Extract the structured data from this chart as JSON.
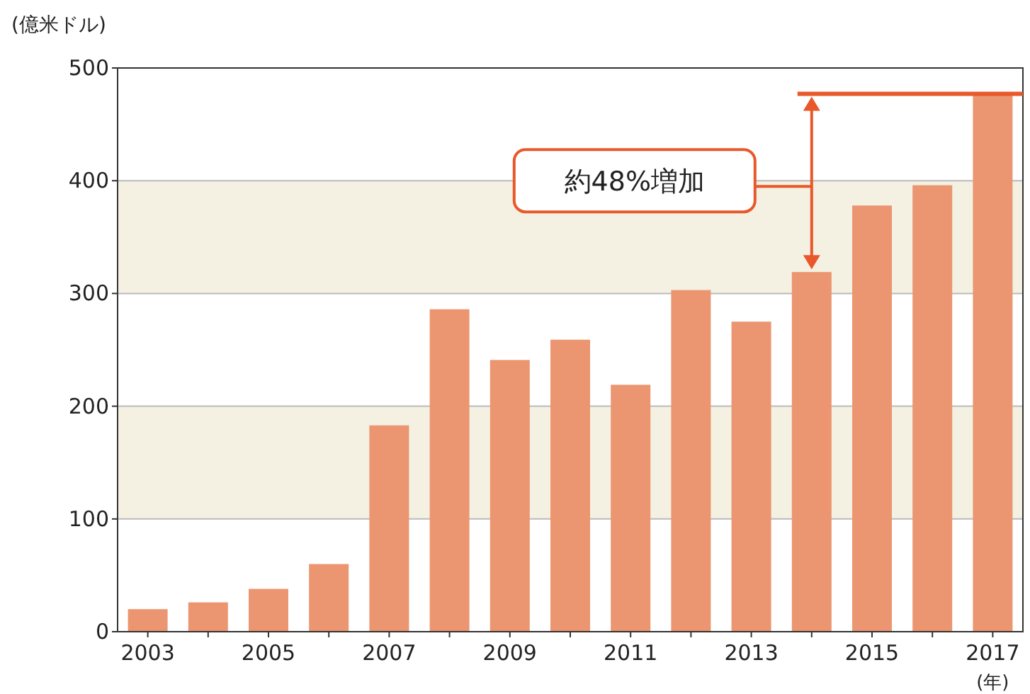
{
  "chart_data": {
    "type": "bar",
    "ylabel": "(億米ドル)",
    "xlabel": "(年)",
    "categories": [
      "2003",
      null,
      "2005",
      null,
      "2007",
      null,
      "2009",
      null,
      "2011",
      null,
      "2013",
      null,
      "2015",
      null,
      "2017"
    ],
    "values": [
      20,
      26,
      38,
      60,
      183,
      286,
      241,
      259,
      219,
      303,
      275,
      319,
      378,
      396,
      477
    ],
    "color": "#eb9670",
    "ylim": [
      0,
      500
    ],
    "yticks": [
      0,
      100,
      200,
      300,
      400,
      500
    ],
    "grid": "y",
    "bands": [
      {
        "axis": "y",
        "from": 100,
        "to": 200,
        "color": "#f4f0e2"
      },
      {
        "axis": "y",
        "from": 300,
        "to": 400,
        "color": "#f4f0e2"
      }
    ],
    "ref_lines": [
      {
        "axis": "y",
        "value": 477,
        "color": "#e8582a"
      }
    ],
    "annotations": [
      "約48%増加"
    ]
  }
}
